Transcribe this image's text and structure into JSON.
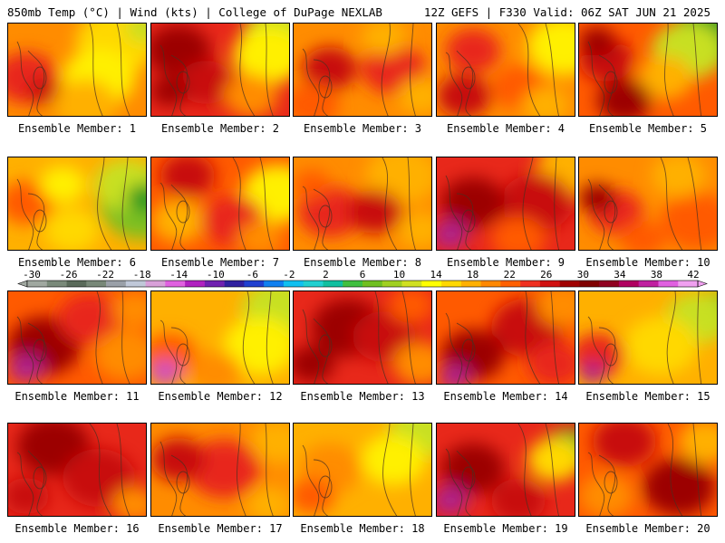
{
  "header": {
    "left": "850mb Temp (°C) | Wind (kts) | College of DuPage NEXLAB",
    "right": "12Z GEFS | F330 Valid: 06Z SAT JUN 21 2025"
  },
  "members": [
    {
      "label": "Ensemble Member: 1",
      "tone": "Yellow / orange, warmer west"
    },
    {
      "label": "Ensemble Member: 2",
      "tone": "Red / dark red, yellow-green NE"
    },
    {
      "label": "Ensemble Member: 3",
      "tone": "Orange / red"
    },
    {
      "label": "Ensemble Member: 4",
      "tone": "Orange / red, yellow NE"
    },
    {
      "label": "Ensemble Member: 5",
      "tone": "Red SW, green NE"
    },
    {
      "label": "Ensemble Member: 6",
      "tone": "Orange west, green east"
    },
    {
      "label": "Ensemble Member: 7",
      "tone": "Red / orange"
    },
    {
      "label": "Ensemble Member: 8",
      "tone": "Orange / red"
    },
    {
      "label": "Ensemble Member: 9",
      "tone": "Red / dark red, magenta SW"
    },
    {
      "label": "Ensemble Member: 10",
      "tone": "Orange / red"
    },
    {
      "label": "Ensemble Member: 11",
      "tone": "Red / dark red, magenta SW"
    },
    {
      "label": "Ensemble Member: 12",
      "tone": "Yellow / orange, green NE"
    },
    {
      "label": "Ensemble Member: 13",
      "tone": "Dark red / red"
    },
    {
      "label": "Ensemble Member: 14",
      "tone": "Red / dark red"
    },
    {
      "label": "Ensemble Member: 15",
      "tone": "Orange / yellow, green NE"
    },
    {
      "label": "Ensemble Member: 16",
      "tone": "Red / dark red"
    },
    {
      "label": "Ensemble Member: 17",
      "tone": "Orange / red"
    },
    {
      "label": "Ensemble Member: 18",
      "tone": "Orange / yellow, green NE"
    },
    {
      "label": "Ensemble Member: 19",
      "tone": "Red / dark red, green NE"
    },
    {
      "label": "Ensemble Member: 20",
      "tone": "Red / orange"
    }
  ],
  "colorbar": {
    "ticks": [
      "-30",
      "-26",
      "-22",
      "-18",
      "-14",
      "-10",
      "-6",
      "-2",
      "2",
      "6",
      "10",
      "14",
      "18",
      "22",
      "26",
      "30",
      "34",
      "38",
      "42"
    ],
    "colors": [
      "#a0a8a0",
      "#7a8a7a",
      "#5a6a5a",
      "#788878",
      "#9aa0a8",
      "#c0c8d8",
      "#d8a0d8",
      "#e060e0",
      "#b020c0",
      "#7020b0",
      "#3020a0",
      "#2040d0",
      "#1080f0",
      "#10c0f0",
      "#20d0d0",
      "#10c0a0",
      "#40c040",
      "#70c020",
      "#a0d020",
      "#d0e020",
      "#ffff00",
      "#ffd800",
      "#ffb000",
      "#ff8800",
      "#ff6000",
      "#f03020",
      "#d01010",
      "#a00000",
      "#800000",
      "#900020",
      "#b00060",
      "#c020a0",
      "#e060e0",
      "#f0a0f0"
    ]
  }
}
